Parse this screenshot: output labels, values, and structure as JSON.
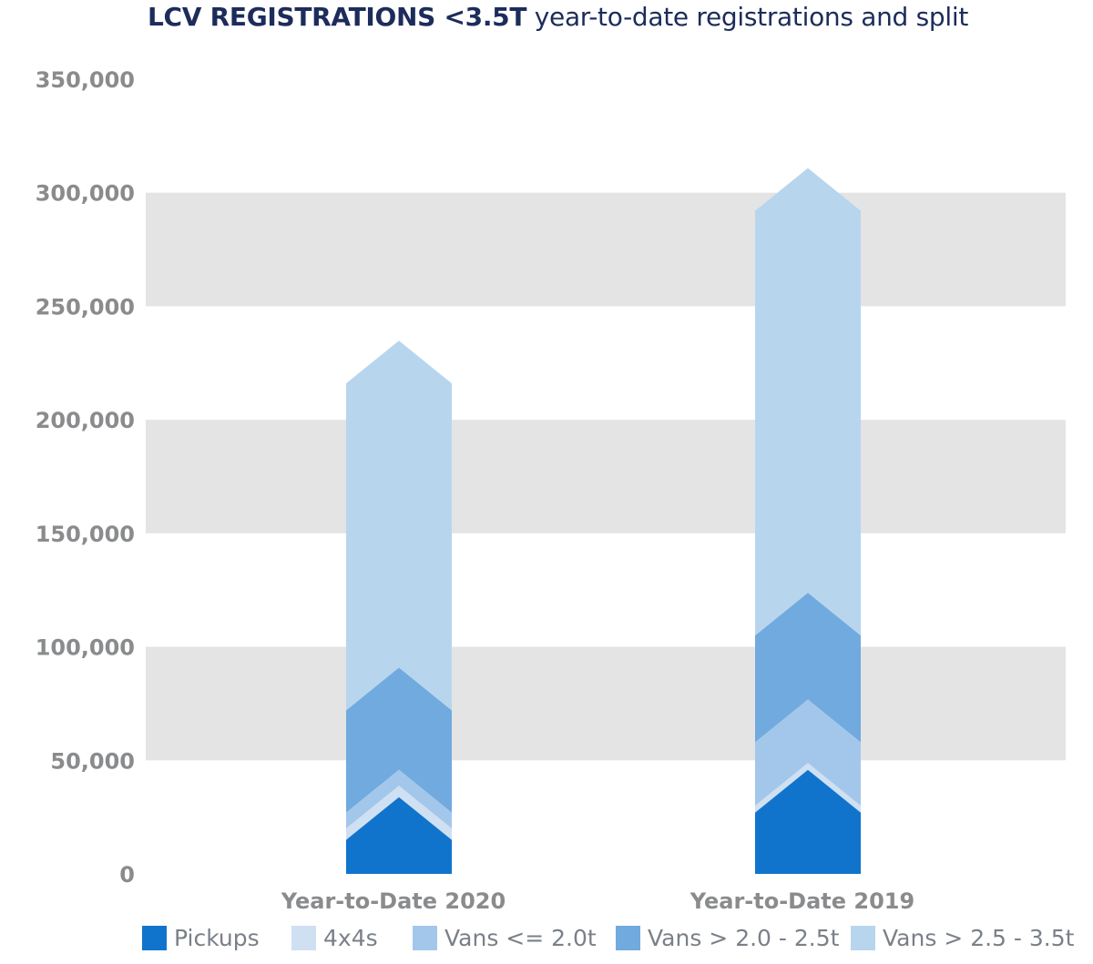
{
  "header": {
    "title_bold": "LCV REGISTRATIONS <3.5T",
    "title_rest": " year-to-date registrations and split"
  },
  "chart_data": {
    "type": "bar",
    "stacked": true,
    "title": "LCV REGISTRATIONS <3.5T year-to-date registrations and split",
    "xlabel": "",
    "ylabel": "",
    "ylim": [
      0,
      350000
    ],
    "yticks": [
      0,
      50000,
      100000,
      150000,
      200000,
      250000,
      300000,
      350000
    ],
    "ytick_labels": [
      "0",
      "50,000",
      "100,000",
      "150,000",
      "200,000",
      "250,000",
      "300,000",
      "350,000"
    ],
    "categories": [
      "Year-to-Date 2020",
      "Year-to-Date 2019"
    ],
    "series": [
      {
        "name": "Pickups",
        "color": "#1174cc",
        "values": [
          15000,
          27000
        ]
      },
      {
        "name": "4x4s",
        "color": "#cfe0f3",
        "values": [
          5000,
          3000
        ]
      },
      {
        "name": "Vans <= 2.0t",
        "color": "#a3c7ea",
        "values": [
          7000,
          28000
        ]
      },
      {
        "name": "Vans > 2.0 - 2.5t",
        "color": "#71aade",
        "values": [
          45000,
          47000
        ]
      },
      {
        "name": "Vans > 2.5 - 3.5t",
        "color": "#b8d5ee",
        "values": [
          144000,
          187000
        ]
      }
    ],
    "grid": "alternating horizontal bands",
    "band_color": "#e4e4e4",
    "legend": "bottom"
  }
}
